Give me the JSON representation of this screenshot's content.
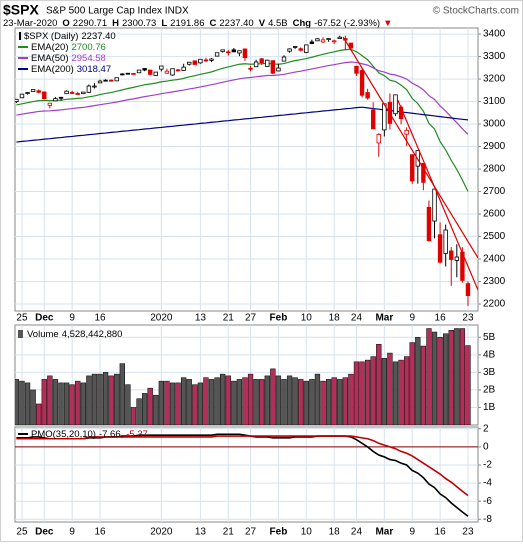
{
  "chart_data": [
    {
      "type": "candlestick",
      "title": "$SPX",
      "subtitle": "S&P 500 Large Cap Index INDX",
      "credit": "© StockCharts.com",
      "date": "23-Mar-2020",
      "info": [
        {
          "label": "O",
          "value": "2290.71"
        },
        {
          "label": "H",
          "value": "2300.73"
        },
        {
          "label": "L",
          "value": "2191.86"
        },
        {
          "label": "C",
          "value": "2237.40"
        },
        {
          "label": "V",
          "value": "4.5B"
        },
        {
          "label": "Chg",
          "value": "-67.52 (-2.93%)"
        }
      ],
      "arrow": "▼",
      "price_label": "$SPX (Daily)",
      "price_value_label": "2237.40",
      "categories": [
        null,
        "25",
        null,
        null,
        null,
        "Dec",
        null,
        null,
        null,
        null,
        "9",
        null,
        null,
        null,
        null,
        "16",
        null,
        null,
        null,
        null,
        null,
        null,
        null,
        null,
        null,
        null,
        "2020",
        null,
        null,
        null,
        null,
        null,
        null,
        "13",
        null,
        null,
        null,
        null,
        "21",
        null,
        null,
        null,
        "27",
        null,
        null,
        null,
        null,
        "Feb",
        null,
        null,
        null,
        null,
        "10",
        null,
        null,
        null,
        null,
        "18",
        null,
        null,
        null,
        "24",
        null,
        null,
        null,
        null,
        "Mar",
        null,
        null,
        null,
        null,
        "9",
        null,
        null,
        null,
        null,
        "16",
        null,
        null,
        null,
        null,
        "23"
      ],
      "open": [
        3100,
        3117,
        3136,
        3145,
        3148,
        3143,
        3083,
        3103,
        3119,
        3135,
        3141,
        3136,
        3135,
        3141,
        3166,
        3183,
        3195,
        3195,
        3192,
        3223,
        3226,
        3225,
        3228,
        3247,
        3240,
        3216,
        3244,
        3226,
        3218,
        3241,
        3238,
        3266,
        3281,
        3272,
        3285,
        3283,
        3302,
        3323,
        3321,
        3330,
        3316,
        3334,
        3248,
        3255,
        3290,
        3256,
        3282,
        3236,
        3280,
        3324,
        3344,
        3335,
        3318,
        3365,
        3370,
        3365,
        3378,
        3369,
        3380,
        3380,
        3360,
        3257,
        3238,
        3140,
        3063,
        2916,
        2974,
        3096,
        3046,
        3075,
        2955,
        2864,
        2813,
        2825,
        2630,
        2569,
        2508,
        2425,
        2436,
        2394,
        2431,
        2290.71
      ],
      "high": [
        3112,
        3133,
        3142,
        3154,
        3154,
        3144,
        3094,
        3120,
        3120,
        3150,
        3148,
        3143,
        3143,
        3176,
        3182,
        3197,
        3199,
        3198,
        3207,
        3226,
        3227,
        3226,
        3240,
        3248,
        3241,
        3232,
        3258,
        3246,
        3247,
        3245,
        3268,
        3275,
        3283,
        3288,
        3295,
        3294,
        3317,
        3330,
        3330,
        3338,
        3326,
        3334,
        3259,
        3286,
        3294,
        3286,
        3282,
        3268,
        3306,
        3337,
        3347,
        3341,
        3352,
        3375,
        3382,
        3385,
        3381,
        3375,
        3393,
        3393,
        3360,
        3259,
        3247,
        3157,
        3097,
        2960,
        3090,
        3136,
        3130,
        3083,
        2985,
        2864,
        2883,
        2825,
        2660,
        2711,
        2563,
        2553,
        2453,
        2466,
        2453,
        2300.73
      ],
      "low": [
        3094,
        3117,
        3131,
        3145,
        3137,
        3110,
        3070,
        3102,
        3103,
        3134,
        3135,
        3130,
        3133,
        3138,
        3158,
        3183,
        3189,
        3191,
        3192,
        3216,
        3220,
        3222,
        3228,
        3235,
        3217,
        3215,
        3234,
        3223,
        3215,
        3233,
        3236,
        3260,
        3263,
        3268,
        3276,
        3275,
        3301,
        3318,
        3304,
        3320,
        3302,
        3281,
        3234,
        3253,
        3263,
        3255,
        3222,
        3235,
        3280,
        3317,
        3334,
        3323,
        3315,
        3355,
        3370,
        3360,
        3366,
        3356,
        3378,
        3328,
        3328,
        3214,
        3118,
        3108,
        2977,
        2855,
        2945,
        2976,
        3035,
        2999,
        2902,
        2734,
        2735,
        2706,
        2478,
        2492,
        2380,
        2367,
        2281,
        2319,
        2295,
        2191.86
      ],
      "close": [
        3110,
        3133,
        3140,
        3153,
        3141,
        3113,
        3093,
        3113,
        3117,
        3146,
        3136,
        3133,
        3142,
        3169,
        3169,
        3191,
        3192,
        3191,
        3206,
        3221,
        3224,
        3223,
        3240,
        3240,
        3221,
        3231,
        3258,
        3235,
        3246,
        3237,
        3253,
        3275,
        3265,
        3288,
        3283,
        3289,
        3317,
        3330,
        3321,
        3321,
        3326,
        3295,
        3244,
        3276,
        3273,
        3284,
        3226,
        3249,
        3298,
        3334,
        3345,
        3328,
        3352,
        3358,
        3379,
        3374,
        3380,
        3370,
        3386,
        3373,
        3338,
        3226,
        3128,
        3116,
        2979,
        2954,
        3090,
        3003,
        3130,
        3024,
        2972,
        2747,
        2882,
        2741,
        2481,
        2711,
        2386,
        2529,
        2398,
        2409,
        2305,
        2237.4
      ],
      "up_color": "#000000",
      "down_color": "#e00000",
      "series": [
        {
          "name": "EMA(20)",
          "last_label": "2700.76",
          "color": "#228b22",
          "values": [
            3085,
            3090,
            3095,
            3100,
            3104,
            3105,
            3104,
            3105,
            3106,
            3110,
            3112,
            3114,
            3116,
            3121,
            3125,
            3131,
            3136,
            3140,
            3146,
            3152,
            3158,
            3163,
            3169,
            3175,
            3178,
            3182,
            3188,
            3191,
            3195,
            3198,
            3203,
            3210,
            3215,
            3221,
            3226,
            3232,
            3240,
            3248,
            3254,
            3260,
            3266,
            3268,
            3266,
            3267,
            3268,
            3270,
            3267,
            3266,
            3269,
            3276,
            3282,
            3286,
            3291,
            3297,
            3304,
            3310,
            3316,
            3321,
            3327,
            3331,
            3332,
            3322,
            3304,
            3286,
            3257,
            3228,
            3215,
            3195,
            3189,
            3173,
            3153,
            3114,
            3091,
            3057,
            3003,
            2978,
            2922,
            2885,
            2839,
            2798,
            2751,
            2700.76
          ]
        },
        {
          "name": "EMA(50)",
          "last_label": "2954.58",
          "color": "#a040c8",
          "values": [
            3040,
            3044,
            3048,
            3052,
            3056,
            3058,
            3059,
            3061,
            3063,
            3066,
            3069,
            3072,
            3074,
            3078,
            3082,
            3086,
            3090,
            3094,
            3098,
            3103,
            3108,
            3112,
            3117,
            3122,
            3126,
            3130,
            3135,
            3139,
            3143,
            3147,
            3151,
            3156,
            3160,
            3165,
            3170,
            3175,
            3180,
            3186,
            3191,
            3196,
            3201,
            3205,
            3207,
            3210,
            3213,
            3216,
            3216,
            3218,
            3221,
            3226,
            3231,
            3235,
            3240,
            3245,
            3250,
            3255,
            3260,
            3264,
            3269,
            3273,
            3276,
            3274,
            3268,
            3262,
            3250,
            3237,
            3231,
            3222,
            3218,
            3210,
            3200,
            3182,
            3169,
            3152,
            3126,
            3110,
            3081,
            3058,
            3031,
            3006,
            2979,
            2954.58
          ]
        },
        {
          "name": "EMA(200)",
          "last_label": "3018.47",
          "color": "#000080",
          "values": [
            2920,
            2923,
            2925,
            2928,
            2930,
            2933,
            2935,
            2938,
            2940,
            2943,
            2945,
            2948,
            2950,
            2953,
            2955,
            2958,
            2960,
            2963,
            2965,
            2968,
            2970,
            2973,
            2975,
            2978,
            2980,
            2983,
            2985,
            2988,
            2990,
            2993,
            2995,
            2998,
            3000,
            3003,
            3005,
            3008,
            3010,
            3013,
            3015,
            3018,
            3020,
            3023,
            3025,
            3028,
            3030,
            3033,
            3035,
            3038,
            3040,
            3043,
            3045,
            3048,
            3050,
            3053,
            3055,
            3058,
            3060,
            3063,
            3065,
            3068,
            3070,
            3073,
            3075,
            3072,
            3069,
            3066,
            3063,
            3060,
            3057,
            3054,
            3051,
            3048,
            3045,
            3042,
            3039,
            3036,
            3033,
            3030,
            3027,
            3024,
            3021,
            3018.47
          ]
        }
      ],
      "trendlines": [
        {
          "color": "#e00000",
          "x": [
            58.6,
            82.8
          ],
          "y": [
            3387,
            2405
          ]
        },
        {
          "color": "#e00000",
          "x": [
            68.4,
            82.8
          ],
          "y": [
            3107,
            2262
          ]
        }
      ],
      "ylim": [
        2169,
        3427
      ],
      "yticks": [
        2200,
        2300,
        2400,
        2500,
        2600,
        2700,
        2800,
        2900,
        3000,
        3100,
        3200,
        3300,
        3400
      ],
      "grid": true
    },
    {
      "type": "bar",
      "name": "Volume",
      "value_label": "4,528,442,880",
      "values": [
        2600000000.0,
        2500000000.0,
        2400000000.0,
        2000000000.0,
        1200000000.0,
        2600000000.0,
        2800000000.0,
        2600000000.0,
        2400000000.0,
        2400000000.0,
        2300000000.0,
        2500000000.0,
        2400000000.0,
        2800000000.0,
        2900000000.0,
        2900000000.0,
        3000000000.0,
        2800000000.0,
        2900000000.0,
        3500000000.0,
        2300000000.0,
        1000000000.0,
        1500000000.0,
        1800000000.0,
        2100000000.0,
        1700000000.0,
        2500000000.0,
        2500000000.0,
        2400000000.0,
        2400000000.0,
        2700000000.0,
        2600000000.0,
        2300000000.0,
        2400000000.0,
        2700000000.0,
        2600000000.0,
        2700000000.0,
        2900000000.0,
        2800000000.0,
        2500000000.0,
        2600000000.0,
        2700000000.0,
        2900000000.0,
        2600000000.0,
        2600000000.0,
        2800000000.0,
        3200000000.0,
        2800000000.0,
        2600000000.0,
        2800000000.0,
        2700000000.0,
        2600000000.0,
        2500000000.0,
        2600000000.0,
        2900000000.0,
        2500000000.0,
        2600000000.0,
        2700000000.0,
        2600000000.0,
        2700000000.0,
        2900000000.0,
        3600000000.0,
        3600000000.0,
        3700000000.0,
        3900000000.0,
        4600000000.0,
        3800000000.0,
        4100000000.0,
        3600000000.0,
        3700000000.0,
        3900000000.0,
        4700000000.0,
        5000000000.0,
        4500000000.0,
        5500000000.0,
        5300000000.0,
        5000000000.0,
        5200000000.0,
        5400000000.0,
        5500000000.0,
        5500000000.0,
        4528442880
      ],
      "up_color": "#555555",
      "down_color": "#b0305a",
      "ylim": [
        0,
        5700000000.0
      ],
      "yticks": [
        {
          "value": 1000000000.0,
          "label": "1B"
        },
        {
          "value": 2000000000.0,
          "label": "2B"
        },
        {
          "value": 3000000000.0,
          "label": "3B"
        },
        {
          "value": 4000000000.0,
          "label": "4B"
        },
        {
          "value": 5000000000.0,
          "label": "5B"
        }
      ],
      "grid": true
    },
    {
      "type": "line",
      "categories": [
        null,
        "25",
        null,
        null,
        null,
        "Dec",
        null,
        null,
        null,
        null,
        "9",
        null,
        null,
        null,
        null,
        "16",
        null,
        null,
        null,
        null,
        null,
        null,
        null,
        null,
        null,
        null,
        "2020",
        null,
        null,
        null,
        null,
        null,
        null,
        "13",
        null,
        null,
        null,
        null,
        "21",
        null,
        null,
        null,
        "27",
        null,
        null,
        null,
        null,
        "Feb",
        null,
        null,
        null,
        null,
        "10",
        null,
        null,
        null,
        null,
        "18",
        null,
        null,
        null,
        "24",
        null,
        null,
        null,
        null,
        "Mar",
        null,
        null,
        null,
        null,
        "9",
        null,
        null,
        null,
        null,
        "16",
        null,
        null,
        null,
        null,
        "23"
      ],
      "series": [
        {
          "name": "PMO(35,20,10)",
          "last_label": "-7.66,",
          "color": "#000000",
          "values": [
            1.0,
            1.0,
            1.0,
            1.1,
            1.1,
            1.0,
            0.9,
            0.9,
            0.9,
            0.9,
            0.9,
            0.9,
            0.9,
            1.0,
            1.0,
            1.0,
            1.1,
            1.1,
            1.1,
            1.2,
            1.2,
            1.2,
            1.3,
            1.3,
            1.3,
            1.3,
            1.3,
            1.3,
            1.3,
            1.3,
            1.3,
            1.3,
            1.3,
            1.3,
            1.3,
            1.3,
            1.4,
            1.4,
            1.4,
            1.4,
            1.4,
            1.3,
            1.2,
            1.1,
            1.1,
            1.1,
            1.0,
            1.0,
            1.0,
            1.0,
            1.1,
            1.1,
            1.1,
            1.1,
            1.2,
            1.2,
            1.2,
            1.2,
            1.2,
            1.2,
            1.1,
            0.8,
            0.4,
            0.0,
            -0.5,
            -0.9,
            -1.1,
            -1.4,
            -1.5,
            -1.8,
            -2.0,
            -2.6,
            -2.9,
            -3.4,
            -4.1,
            -4.5,
            -5.2,
            -5.6,
            -6.2,
            -6.7,
            -7.2,
            -7.66
          ]
        },
        {
          "last_label": "-5.37",
          "color": "#c00000",
          "values": [
            0.9,
            0.9,
            0.9,
            0.9,
            0.9,
            0.9,
            0.9,
            0.9,
            0.9,
            0.9,
            0.9,
            0.9,
            0.9,
            1.1,
            1.1,
            1.1,
            1.1,
            1.1,
            1.1,
            1.1,
            1.1,
            1.1,
            1.1,
            1.1,
            1.1,
            1.1,
            1.1,
            1.1,
            1.1,
            1.1,
            1.1,
            1.1,
            1.1,
            1.1,
            1.1,
            1.1,
            1.2,
            1.2,
            1.2,
            1.2,
            1.2,
            1.2,
            1.2,
            1.2,
            1.2,
            1.2,
            1.2,
            1.2,
            1.2,
            1.2,
            1.2,
            1.2,
            1.2,
            1.2,
            1.2,
            1.2,
            1.2,
            1.2,
            1.2,
            1.2,
            1.2,
            1.1,
            1.0,
            0.9,
            0.7,
            0.4,
            0.2,
            0.0,
            -0.2,
            -0.5,
            -0.7,
            -1.0,
            -1.4,
            -1.8,
            -2.2,
            -2.6,
            -3.0,
            -3.5,
            -3.9,
            -4.4,
            -4.9,
            -5.37
          ]
        }
      ],
      "zero_line_color": "#8b0000",
      "ylim": [
        -8.3,
        2.2
      ],
      "yticks": [
        2,
        0,
        -2,
        -4,
        -6,
        -8
      ],
      "grid": true
    }
  ]
}
